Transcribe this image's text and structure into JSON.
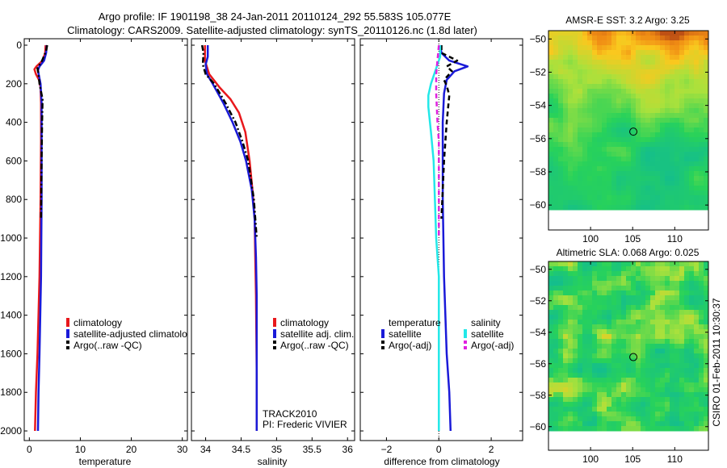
{
  "header": {
    "line1": "Argo profile: IF 1901198_38 24-Jan-2011 20110124_292 55.583S 105.077E",
    "line2": "Climatology: CARS2009. Satellite-adjusted climatology: synTS_20110126.nc (1.8d later)"
  },
  "colors": {
    "climatology": "#e8181c",
    "satellite": "#1a1ad8",
    "argo": "#000000",
    "satellite_sal": "#22e8e8",
    "argo_sal": "#e020e0"
  },
  "chart_data": [
    {
      "type": "line",
      "name": "temperature-panel",
      "xlabel": "temperature",
      "xlim": [
        -1,
        31
      ],
      "ylim": [
        0,
        2050
      ],
      "x_ticks": [
        0,
        10,
        20,
        30
      ],
      "y_ticks": [
        0,
        200,
        400,
        600,
        800,
        1000,
        1200,
        1400,
        1600,
        1800,
        2000
      ],
      "legend": [
        "climatology",
        "satellite-adjusted climatolo",
        "Argo(..raw -QC)"
      ],
      "series": [
        {
          "name": "climatology",
          "style": "solid",
          "color_key": "climatology",
          "points": [
            [
              3.2,
              0
            ],
            [
              3.1,
              40
            ],
            [
              2.6,
              80
            ],
            [
              1.4,
              110
            ],
            [
              1.0,
              125
            ],
            [
              1.3,
              150
            ],
            [
              1.9,
              180
            ],
            [
              2.2,
              220
            ],
            [
              2.3,
              300
            ],
            [
              2.3,
              500
            ],
            [
              2.2,
              800
            ],
            [
              2.0,
              1200
            ],
            [
              1.6,
              1600
            ],
            [
              1.3,
              1800
            ],
            [
              1.1,
              2000
            ]
          ]
        },
        {
          "name": "satellite",
          "style": "solid",
          "color_key": "satellite",
          "points": [
            [
              3.4,
              0
            ],
            [
              3.3,
              40
            ],
            [
              2.9,
              80
            ],
            [
              2.0,
              110
            ],
            [
              1.7,
              130
            ],
            [
              1.9,
              160
            ],
            [
              2.2,
              200
            ],
            [
              2.4,
              300
            ],
            [
              2.4,
              500
            ],
            [
              2.4,
              800
            ],
            [
              2.3,
              1200
            ],
            [
              2.0,
              1600
            ],
            [
              1.8,
              1800
            ],
            [
              1.7,
              2000
            ]
          ]
        },
        {
          "name": "argo",
          "style": "dashdot",
          "color_key": "argo",
          "points": [
            [
              3.5,
              0
            ],
            [
              3.3,
              30
            ],
            [
              2.5,
              80
            ],
            [
              1.6,
              120
            ],
            [
              1.8,
              150
            ],
            [
              2.0,
              200
            ],
            [
              2.6,
              280
            ],
            [
              2.5,
              400
            ],
            [
              2.4,
              600
            ],
            [
              2.3,
              900
            ]
          ]
        }
      ]
    },
    {
      "type": "line",
      "name": "salinity-panel",
      "xlabel": "salinity",
      "xlim": [
        33.8,
        36.1
      ],
      "ylim": [
        0,
        2050
      ],
      "x_ticks": [
        34,
        34.5,
        35,
        35.5,
        36
      ],
      "legend": [
        "climatology",
        "satellite adj. clim.",
        "Argo(..raw -QC)"
      ],
      "annotations": [
        "TRACK2010",
        "PI: Frederic VIVIER"
      ],
      "series": [
        {
          "name": "climatology",
          "style": "solid",
          "color_key": "climatology",
          "points": [
            [
              33.99,
              0
            ],
            [
              33.99,
              80
            ],
            [
              34.05,
              150
            ],
            [
              34.2,
              220
            ],
            [
              34.35,
              280
            ],
            [
              34.47,
              350
            ],
            [
              34.56,
              450
            ],
            [
              34.62,
              600
            ],
            [
              34.66,
              750
            ],
            [
              34.69,
              900
            ],
            [
              34.7,
              1100
            ],
            [
              34.71,
              1300
            ],
            [
              34.72,
              1700
            ],
            [
              34.72,
              2000
            ]
          ]
        },
        {
          "name": "satellite",
          "style": "solid",
          "color_key": "satellite",
          "points": [
            [
              34.03,
              0
            ],
            [
              34.03,
              60
            ],
            [
              34.0,
              100
            ],
            [
              34.02,
              150
            ],
            [
              34.1,
              200
            ],
            [
              34.25,
              300
            ],
            [
              34.38,
              400
            ],
            [
              34.49,
              500
            ],
            [
              34.57,
              600
            ],
            [
              34.65,
              750
            ],
            [
              34.69,
              900
            ],
            [
              34.71,
              1100
            ],
            [
              34.72,
              1300
            ],
            [
              34.72,
              1700
            ],
            [
              34.72,
              2000
            ]
          ]
        },
        {
          "name": "argo",
          "style": "dashdot",
          "color_key": "argo",
          "points": [
            [
              33.95,
              0
            ],
            [
              33.97,
              40
            ],
            [
              33.96,
              100
            ],
            [
              34.0,
              150
            ],
            [
              34.12,
              200
            ],
            [
              34.28,
              300
            ],
            [
              34.42,
              400
            ],
            [
              34.52,
              500
            ],
            [
              34.6,
              600
            ],
            [
              34.68,
              800
            ],
            [
              34.72,
              1000
            ]
          ]
        }
      ]
    },
    {
      "type": "line",
      "name": "difference-panel",
      "xlabel": "difference from climatology",
      "xlim": [
        -3,
        3.2
      ],
      "ylim": [
        0,
        2050
      ],
      "x_ticks": [
        -2,
        0,
        2
      ],
      "legend_temperature": {
        "title": "temperature",
        "items": [
          "satellite",
          "Argo(-adj)"
        ]
      },
      "legend_salinity": {
        "title": "salinity",
        "items": [
          "satellite",
          "Argo(-adj)"
        ]
      },
      "series": [
        {
          "name": "temp-satellite",
          "style": "solid",
          "color_key": "satellite",
          "points": [
            [
              0.05,
              0
            ],
            [
              0.1,
              40
            ],
            [
              0.4,
              80
            ],
            [
              1.1,
              110
            ],
            [
              0.6,
              135
            ],
            [
              0.3,
              180
            ],
            [
              0.2,
              250
            ],
            [
              0.15,
              400
            ],
            [
              0.15,
              800
            ],
            [
              0.2,
              1200
            ],
            [
              0.3,
              1600
            ],
            [
              0.4,
              1800
            ],
            [
              0.45,
              2000
            ]
          ]
        },
        {
          "name": "temp-argo",
          "style": "dashed",
          "color_key": "argo",
          "points": [
            [
              0.1,
              0
            ],
            [
              0.1,
              40
            ],
            [
              0.7,
              80
            ],
            [
              0.3,
              110
            ],
            [
              0.5,
              135
            ],
            [
              0.2,
              180
            ],
            [
              0.3,
              210
            ],
            [
              0.4,
              260
            ],
            [
              0.3,
              400
            ],
            [
              0.2,
              600
            ],
            [
              0.1,
              900
            ]
          ]
        },
        {
          "name": "sal-satellite",
          "style": "solid",
          "color_key": "satellite_sal",
          "points": [
            [
              0.05,
              0
            ],
            [
              0.05,
              60
            ],
            [
              -0.3,
              200
            ],
            [
              -0.4,
              260
            ],
            [
              -0.4,
              320
            ],
            [
              -0.3,
              450
            ],
            [
              -0.2,
              600
            ],
            [
              -0.15,
              800
            ],
            [
              -0.1,
              1000
            ],
            [
              0.0,
              1200
            ],
            [
              0.0,
              2000
            ]
          ]
        },
        {
          "name": "sal-argo",
          "style": "dashed",
          "color_key": "argo_sal",
          "points": [
            [
              0.0,
              0
            ],
            [
              -0.1,
              150
            ],
            [
              -0.1,
              250
            ],
            [
              -0.05,
              400
            ],
            [
              0.0,
              500
            ],
            [
              0.0,
              700
            ],
            [
              0.0,
              1000
            ]
          ]
        }
      ]
    },
    {
      "type": "heatmap",
      "name": "sst-map",
      "title": "AMSR-E SST: 3.2 Argo: 3.25",
      "xlim": [
        95,
        114
      ],
      "ylim": [
        -61.5,
        -49.5
      ],
      "x_ticks": [
        100,
        105,
        110
      ],
      "y_ticks": [
        -50,
        -52,
        -54,
        -56,
        -58,
        -60
      ],
      "marker": [
        105.08,
        -55.58
      ],
      "data_extent_lat": [
        -60,
        -49.5
      ]
    },
    {
      "type": "heatmap",
      "name": "sla-map",
      "title": "Altimetric SLA: 0.068 Argo: 0.025",
      "xlim": [
        95,
        114
      ],
      "ylim": [
        -61.5,
        -49.5
      ],
      "x_ticks": [
        100,
        105,
        110
      ],
      "y_ticks": [
        -50,
        -52,
        -54,
        -56,
        -58,
        -60
      ],
      "marker": [
        105.08,
        -55.58
      ],
      "data_extent_lat": [
        -60,
        -49.5
      ]
    }
  ],
  "footer": {
    "credit": "CSIRO 01-Feb-2011 10:30:37"
  }
}
